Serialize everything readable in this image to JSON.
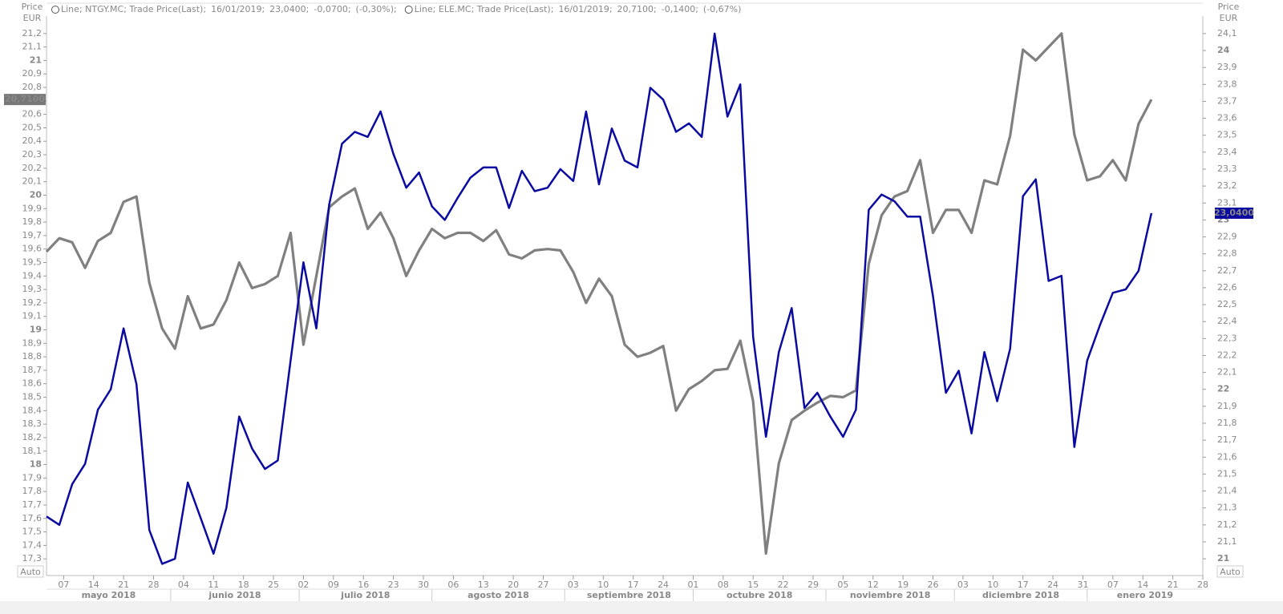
{
  "chart_data": {
    "type": "line",
    "y_title": "Price",
    "y_unit": "EUR",
    "y_auto": "Auto",
    "y2_title": "Price",
    "y2_unit": "EUR",
    "y2_auto": "Auto",
    "xlim": [
      "2018-05-03",
      "2019-01-28"
    ],
    "xticks": [
      {
        "value": "2018-05-07",
        "label": "07"
      },
      {
        "value": "2018-05-14",
        "label": "14"
      },
      {
        "value": "2018-05-21",
        "label": "21"
      },
      {
        "value": "2018-05-28",
        "label": "28"
      },
      {
        "value": "2018-06-04",
        "label": "04"
      },
      {
        "value": "2018-06-11",
        "label": "11"
      },
      {
        "value": "2018-06-18",
        "label": "18"
      },
      {
        "value": "2018-06-25",
        "label": "25"
      },
      {
        "value": "2018-07-02",
        "label": "02"
      },
      {
        "value": "2018-07-09",
        "label": "09"
      },
      {
        "value": "2018-07-16",
        "label": "16"
      },
      {
        "value": "2018-07-23",
        "label": "23"
      },
      {
        "value": "2018-07-30",
        "label": "30"
      },
      {
        "value": "2018-08-06",
        "label": "06"
      },
      {
        "value": "2018-08-13",
        "label": "13"
      },
      {
        "value": "2018-08-20",
        "label": "20"
      },
      {
        "value": "2018-08-27",
        "label": "27"
      },
      {
        "value": "2018-09-03",
        "label": "03"
      },
      {
        "value": "2018-09-10",
        "label": "10"
      },
      {
        "value": "2018-09-17",
        "label": "17"
      },
      {
        "value": "2018-09-24",
        "label": "24"
      },
      {
        "value": "2018-10-01",
        "label": "01"
      },
      {
        "value": "2018-10-08",
        "label": "08"
      },
      {
        "value": "2018-10-15",
        "label": "15"
      },
      {
        "value": "2018-10-22",
        "label": "22"
      },
      {
        "value": "2018-10-29",
        "label": "29"
      },
      {
        "value": "2018-11-05",
        "label": "05"
      },
      {
        "value": "2018-11-12",
        "label": "12"
      },
      {
        "value": "2018-11-19",
        "label": "19"
      },
      {
        "value": "2018-11-26",
        "label": "26"
      },
      {
        "value": "2018-12-03",
        "label": "03"
      },
      {
        "value": "2018-12-10",
        "label": "10"
      },
      {
        "value": "2018-12-17",
        "label": "17"
      },
      {
        "value": "2018-12-24",
        "label": "24"
      },
      {
        "value": "2018-12-31",
        "label": "31"
      },
      {
        "value": "2019-01-07",
        "label": "07"
      },
      {
        "value": "2019-01-14",
        "label": "14"
      },
      {
        "value": "2019-01-21",
        "label": "21"
      },
      {
        "value": "2019-01-28",
        "label": "28"
      }
    ],
    "months": [
      {
        "value": "2018-05",
        "label": "mayo 2018"
      },
      {
        "value": "2018-06",
        "label": "junio 2018"
      },
      {
        "value": "2018-07",
        "label": "julio 2018"
      },
      {
        "value": "2018-08",
        "label": "agosto 2018"
      },
      {
        "value": "2018-09",
        "label": "septiembre 2018"
      },
      {
        "value": "2018-10",
        "label": "octubre 2018"
      },
      {
        "value": "2018-11",
        "label": "noviembre 2018"
      },
      {
        "value": "2018-12",
        "label": "diciembre 2018"
      },
      {
        "value": "2019-01",
        "label": "enero 2019"
      }
    ],
    "ylim": [
      17.2,
      21.3
    ],
    "yticks": [
      {
        "value": 17.3,
        "label": "17,3"
      },
      {
        "value": 17.4,
        "label": "17,4"
      },
      {
        "value": 17.5,
        "label": "17,5"
      },
      {
        "value": 17.6,
        "label": "17,6"
      },
      {
        "value": 17.7,
        "label": "17,7"
      },
      {
        "value": 17.8,
        "label": "17,8"
      },
      {
        "value": 17.9,
        "label": "17,9"
      },
      18,
      {
        "value": 18.1,
        "label": "18,1"
      },
      {
        "value": 18.2,
        "label": "18,2"
      },
      {
        "value": 18.3,
        "label": "18,3"
      },
      {
        "value": 18.4,
        "label": "18,4"
      },
      {
        "value": 18.5,
        "label": "18,5"
      },
      {
        "value": 18.6,
        "label": "18,6"
      },
      {
        "value": 18.7,
        "label": "18,7"
      },
      {
        "value": 18.8,
        "label": "18,8"
      },
      {
        "value": 18.9,
        "label": "18,9"
      },
      19,
      {
        "value": 19.1,
        "label": "19,1"
      },
      {
        "value": 19.2,
        "label": "19,2"
      },
      {
        "value": 19.3,
        "label": "19,3"
      },
      {
        "value": 19.4,
        "label": "19,4"
      },
      {
        "value": 19.5,
        "label": "19,5"
      },
      {
        "value": 19.6,
        "label": "19,6"
      },
      {
        "value": 19.7,
        "label": "19,7"
      },
      {
        "value": 19.8,
        "label": "19,8"
      },
      {
        "value": 19.9,
        "label": "19,9"
      },
      20,
      {
        "value": 20.1,
        "label": "20,1"
      },
      {
        "value": 20.2,
        "label": "20,2"
      },
      {
        "value": 20.3,
        "label": "20,3"
      },
      {
        "value": 20.4,
        "label": "20,4"
      },
      {
        "value": 20.5,
        "label": "20,5"
      },
      {
        "value": 20.6,
        "label": "20,6"
      },
      {
        "value": 20.7,
        "label": "20,7"
      },
      {
        "value": 20.8,
        "label": "20,8"
      },
      {
        "value": 20.9,
        "label": "20,9"
      },
      21,
      {
        "value": 21.1,
        "label": "21,1"
      },
      {
        "value": 21.2,
        "label": "21,2"
      }
    ],
    "y2lim": [
      20.92,
      24.18
    ],
    "y2ticks": [
      21,
      {
        "value": 21.1,
        "label": "21,1"
      },
      {
        "value": 21.2,
        "label": "21,2"
      },
      {
        "value": 21.3,
        "label": "21,3"
      },
      {
        "value": 21.4,
        "label": "21,4"
      },
      {
        "value": 21.5,
        "label": "21,5"
      },
      {
        "value": 21.6,
        "label": "21,6"
      },
      {
        "value": 21.7,
        "label": "21,7"
      },
      {
        "value": 21.8,
        "label": "21,8"
      },
      {
        "value": 21.9,
        "label": "21,9"
      },
      22,
      {
        "value": 22.1,
        "label": "22,1"
      },
      {
        "value": 22.2,
        "label": "22,2"
      },
      {
        "value": 22.3,
        "label": "22,3"
      },
      {
        "value": 22.4,
        "label": "22,4"
      },
      {
        "value": 22.5,
        "label": "22,5"
      },
      {
        "value": 22.6,
        "label": "22,6"
      },
      {
        "value": 22.7,
        "label": "22,7"
      },
      {
        "value": 22.8,
        "label": "22,8"
      },
      {
        "value": 22.9,
        "label": "22,9"
      },
      23,
      {
        "value": 23.1,
        "label": "23,1"
      },
      {
        "value": 23.2,
        "label": "23,2"
      },
      {
        "value": 23.3,
        "label": "23,3"
      },
      {
        "value": 23.4,
        "label": "23,4"
      },
      {
        "value": 23.5,
        "label": "23,5"
      },
      {
        "value": 23.6,
        "label": "23,6"
      },
      {
        "value": 23.7,
        "label": "23,7"
      },
      {
        "value": 23.8,
        "label": "23,8"
      },
      {
        "value": 23.9,
        "label": "23,9"
      },
      24,
      {
        "value": 24.1,
        "label": "24,1"
      }
    ],
    "x": [
      "2018-05-03",
      "2018-05-06",
      "2018-05-09",
      "2018-05-12",
      "2018-05-15",
      "2018-05-18",
      "2018-05-21",
      "2018-05-24",
      "2018-05-27",
      "2018-05-30",
      "2018-06-02",
      "2018-06-05",
      "2018-06-08",
      "2018-06-11",
      "2018-06-14",
      "2018-06-17",
      "2018-06-20",
      "2018-06-23",
      "2018-06-26",
      "2018-06-29",
      "2018-07-02",
      "2018-07-05",
      "2018-07-08",
      "2018-07-11",
      "2018-07-14",
      "2018-07-17",
      "2018-07-20",
      "2018-07-23",
      "2018-07-26",
      "2018-07-29",
      "2018-08-01",
      "2018-08-04",
      "2018-08-07",
      "2018-08-10",
      "2018-08-13",
      "2018-08-16",
      "2018-08-19",
      "2018-08-22",
      "2018-08-25",
      "2018-08-28",
      "2018-08-31",
      "2018-09-03",
      "2018-09-06",
      "2018-09-09",
      "2018-09-12",
      "2018-09-15",
      "2018-09-18",
      "2018-09-21",
      "2018-09-24",
      "2018-09-27",
      "2018-09-30",
      "2018-10-03",
      "2018-10-06",
      "2018-10-09",
      "2018-10-12",
      "2018-10-15",
      "2018-10-18",
      "2018-10-21",
      "2018-10-24",
      "2018-10-27",
      "2018-10-30",
      "2018-11-02",
      "2018-11-05",
      "2018-11-08",
      "2018-11-11",
      "2018-11-14",
      "2018-11-17",
      "2018-11-20",
      "2018-11-23",
      "2018-11-26",
      "2018-11-29",
      "2018-12-02",
      "2018-12-05",
      "2018-12-08",
      "2018-12-11",
      "2018-12-14",
      "2018-12-17",
      "2018-12-20",
      "2018-12-23",
      "2018-12-26",
      "2018-12-29",
      "2019-01-01",
      "2019-01-04",
      "2019-01-07",
      "2019-01-10",
      "2019-01-13",
      "2019-01-16"
    ],
    "series": [
      {
        "name": "Line; NTGY.MC; Trade Price(Last);",
        "legend_date": "16/01/2019;",
        "legend_last": "23,0400;",
        "legend_change": "-0,0700;",
        "legend_pct": "(-0,30%);",
        "color": "#0a0aa0",
        "axis": "y2",
        "last_label": "23,0400",
        "values": [
          21.25,
          21.2,
          21.44,
          21.56,
          21.88,
          22.0,
          22.36,
          22.03,
          21.17,
          20.97,
          21.0,
          21.45,
          21.24,
          21.03,
          21.3,
          21.84,
          21.65,
          21.53,
          21.58,
          22.17,
          22.75,
          22.36,
          23.09,
          23.45,
          23.52,
          23.49,
          23.64,
          23.39,
          23.19,
          23.28,
          23.08,
          23.0,
          23.13,
          23.25,
          23.31,
          23.31,
          23.07,
          23.29,
          23.17,
          23.19,
          23.3,
          23.23,
          23.64,
          23.21,
          23.54,
          23.35,
          23.31,
          23.78,
          23.71,
          23.52,
          23.57,
          23.49,
          24.1,
          23.61,
          23.8,
          22.31,
          21.72,
          22.22,
          22.48,
          21.89,
          21.98,
          21.84,
          21.72,
          21.88,
          23.06,
          23.15,
          23.11,
          23.02,
          23.02,
          22.55,
          21.98,
          22.11,
          21.74,
          22.22,
          21.93,
          22.24,
          23.14,
          23.24,
          22.64,
          22.67,
          21.66,
          22.17,
          22.38,
          22.57,
          22.59,
          22.7,
          23.04
        ]
      },
      {
        "name": "Line; ELE.MC; Trade Price(Last);",
        "legend_date": "16/01/2019;",
        "legend_last": "20,7100;",
        "legend_change": "-0,1400;",
        "legend_pct": "(-0,67%)",
        "color": "#808080",
        "axis": "y",
        "last_label": "20,7100",
        "values": [
          19.58,
          19.68,
          19.65,
          19.46,
          19.66,
          19.72,
          19.95,
          19.99,
          19.35,
          19.01,
          18.86,
          19.25,
          19.01,
          19.04,
          19.22,
          19.5,
          19.31,
          19.34,
          19.4,
          19.72,
          18.89,
          19.4,
          19.91,
          19.99,
          20.05,
          19.75,
          19.87,
          19.68,
          19.4,
          19.59,
          19.75,
          19.68,
          19.72,
          19.72,
          19.66,
          19.74,
          19.56,
          19.53,
          19.59,
          19.6,
          19.59,
          19.43,
          19.2,
          19.38,
          19.25,
          18.89,
          18.8,
          18.83,
          18.88,
          18.4,
          18.56,
          18.62,
          18.7,
          18.71,
          18.92,
          18.47,
          17.34,
          18.01,
          18.33,
          18.4,
          18.46,
          18.51,
          18.5,
          18.55,
          19.49,
          19.85,
          19.99,
          20.03,
          20.26,
          19.72,
          19.89,
          19.89,
          19.72,
          20.11,
          20.08,
          20.44,
          21.08,
          21.0,
          21.1,
          21.2,
          20.45,
          20.11,
          20.14,
          20.26,
          20.11,
          20.53,
          20.71
        ]
      }
    ]
  }
}
